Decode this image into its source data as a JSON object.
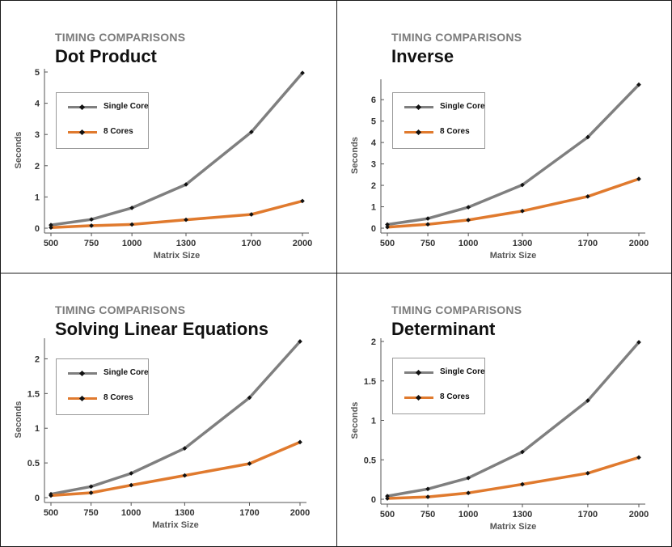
{
  "colors": {
    "single_core": "#7f7f7f",
    "eight_cores": "#e07a2e",
    "axis": "#555555"
  },
  "chart_data": [
    {
      "type": "line",
      "subtitle": "TIMING COMPARISONS",
      "title": "Dot Product",
      "xlabel": "Matrix Size",
      "ylabel": "Seconds",
      "categories": [
        "500",
        "750",
        "1000",
        "1300",
        "1700",
        "2000"
      ],
      "x": [
        500,
        750,
        1000,
        1300,
        1700,
        2000
      ],
      "ylim": [
        0,
        5
      ],
      "yticks": [
        "0",
        "1",
        "2",
        "3",
        "4",
        "5"
      ],
      "ytick_values": [
        0,
        1,
        2,
        3,
        4,
        5
      ],
      "legend": "upper-left",
      "series": [
        {
          "name": "Single Core",
          "values": [
            0.1,
            0.28,
            0.65,
            1.4,
            3.08,
            4.97
          ]
        },
        {
          "name": "8 Cores",
          "values": [
            0.02,
            0.08,
            0.12,
            0.27,
            0.44,
            0.87
          ]
        }
      ]
    },
    {
      "type": "line",
      "subtitle": "TIMING COMPARISONS",
      "title": "Inverse",
      "xlabel": "Matrix Size",
      "ylabel": "Seconds",
      "categories": [
        "500",
        "750",
        "1000",
        "1300",
        "1700",
        "2000"
      ],
      "x": [
        500,
        750,
        1000,
        1300,
        1700,
        2000
      ],
      "ylim": [
        0,
        6.8
      ],
      "yticks": [
        "0",
        "1",
        "2",
        "3",
        "4",
        "5",
        "6"
      ],
      "ytick_values": [
        0,
        1,
        2,
        3,
        4,
        5,
        6
      ],
      "legend": "upper-left",
      "series": [
        {
          "name": "Single Core",
          "values": [
            0.17,
            0.45,
            0.98,
            2.02,
            4.25,
            6.7
          ]
        },
        {
          "name": "8 Cores",
          "values": [
            0.05,
            0.18,
            0.38,
            0.8,
            1.48,
            2.3
          ]
        }
      ]
    },
    {
      "type": "line",
      "subtitle": "TIMING COMPARISONS",
      "title": "Solving Linear Equations",
      "xlabel": "Matrix Size",
      "ylabel": "Seconds",
      "categories": [
        "500",
        "750",
        "1000",
        "1300",
        "1700",
        "2000"
      ],
      "x": [
        500,
        750,
        1000,
        1300,
        1700,
        2000
      ],
      "ylim": [
        0,
        2.25
      ],
      "yticks": [
        "0",
        "0.5",
        "1",
        "1.5",
        "2"
      ],
      "ytick_values": [
        0,
        0.5,
        1,
        1.5,
        2
      ],
      "legend": "upper-left",
      "series": [
        {
          "name": "Single Core",
          "values": [
            0.05,
            0.16,
            0.35,
            0.71,
            1.44,
            2.25
          ]
        },
        {
          "name": "8 Cores",
          "values": [
            0.03,
            0.07,
            0.18,
            0.32,
            0.49,
            0.8
          ]
        }
      ]
    },
    {
      "type": "line",
      "subtitle": "TIMING COMPARISONS",
      "title": "Determinant",
      "xlabel": "Matrix Size",
      "ylabel": "Seconds",
      "categories": [
        "500",
        "750",
        "1000",
        "1300",
        "1700",
        "2000"
      ],
      "x": [
        500,
        750,
        1000,
        1300,
        1700,
        2000
      ],
      "ylim": [
        0,
        2
      ],
      "yticks": [
        "0",
        "0.5",
        "1",
        "1.5",
        "2"
      ],
      "ytick_values": [
        0,
        0.5,
        1,
        1.5,
        2
      ],
      "legend": "upper-left",
      "series": [
        {
          "name": "Single Core",
          "values": [
            0.04,
            0.13,
            0.27,
            0.6,
            1.25,
            1.99
          ]
        },
        {
          "name": "8 Cores",
          "values": [
            0.01,
            0.03,
            0.08,
            0.19,
            0.33,
            0.53
          ]
        }
      ]
    }
  ]
}
